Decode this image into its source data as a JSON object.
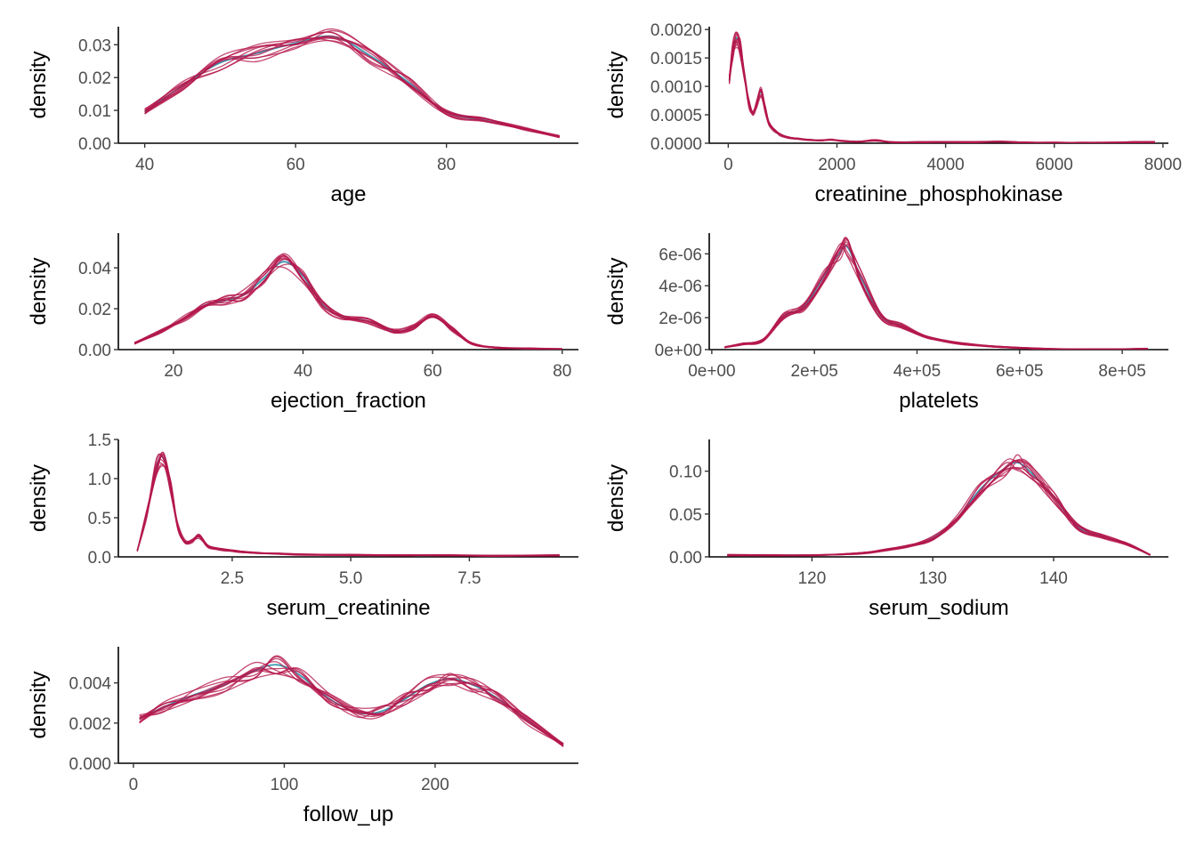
{
  "figure": {
    "colors": {
      "observed": "#3B9AB2",
      "imputed": "#B5174B"
    },
    "legend": "none"
  },
  "chart_data": [
    {
      "type": "line",
      "xlabel": "age",
      "ylabel": "density",
      "xlim": [
        36.5,
        97.5
      ],
      "ylim": [
        0,
        0.0355
      ],
      "xticks": [
        40,
        60,
        80
      ],
      "xtick_labels": [
        "40",
        "60",
        "80"
      ],
      "yticks": [
        0,
        0.01,
        0.02,
        0.03
      ],
      "ytick_labels": [
        "0.00",
        "0.01",
        "0.02",
        "0.03"
      ],
      "grid": false,
      "imputed_series_count": 10,
      "x": [
        40,
        45,
        50,
        55,
        60,
        65,
        70,
        75,
        80,
        85,
        90,
        95
      ],
      "series": [
        {
          "role": "observed",
          "values": [
            0.0095,
            0.0175,
            0.0245,
            0.0275,
            0.0305,
            0.0325,
            0.0265,
            0.0185,
            0.0095,
            0.007,
            0.0045,
            0.002
          ]
        },
        {
          "role": "imputed",
          "values": [
            0.0095,
            0.0175,
            0.0245,
            0.0275,
            0.0305,
            0.0325,
            0.0265,
            0.0185,
            0.0095,
            0.007,
            0.0045,
            0.002
          ]
        }
      ]
    },
    {
      "type": "line",
      "xlabel": "creatinine_phosphokinase",
      "ylabel": "density",
      "xlim": [
        -350,
        8100
      ],
      "ylim": [
        0,
        0.00205
      ],
      "xticks": [
        0,
        2000,
        4000,
        6000,
        8000
      ],
      "xtick_labels": [
        "0",
        "2000",
        "4000",
        "6000",
        "8000"
      ],
      "yticks": [
        0,
        0.0005,
        0.001,
        0.0015,
        0.002
      ],
      "ytick_labels": [
        "0.0000",
        "0.0005",
        "0.0010",
        "0.0015",
        "0.0020"
      ],
      "grid": false,
      "imputed_series_count": 10,
      "x": [
        20,
        80,
        150,
        220,
        300,
        380,
        450,
        520,
        600,
        680,
        750,
        850,
        950,
        1100,
        1300,
        1500,
        1700,
        1900,
        2100,
        2400,
        2700,
        3000,
        3500,
        4000,
        4500,
        5000,
        5500,
        6000,
        6500,
        7000,
        7500,
        7850
      ],
      "series": [
        {
          "role": "observed",
          "values": [
            0.0011,
            0.0016,
            0.00185,
            0.0017,
            0.0012,
            0.0007,
            0.00052,
            0.00068,
            0.0009,
            0.0006,
            0.00035,
            0.00022,
            0.00015,
            0.0001,
            8e-05,
            6e-05,
            5e-05,
            6e-05,
            4e-05,
            3e-05,
            5e-05,
            2e-05,
            2e-05,
            2e-05,
            2e-05,
            3e-05,
            1e-05,
            1e-05,
            1e-05,
            1e-05,
            2e-05,
            2e-05
          ]
        },
        {
          "role": "imputed",
          "values": [
            0.0011,
            0.0016,
            0.00185,
            0.0017,
            0.0012,
            0.0007,
            0.00052,
            0.00068,
            0.0009,
            0.0006,
            0.00035,
            0.00022,
            0.00015,
            0.0001,
            8e-05,
            6e-05,
            5e-05,
            6e-05,
            4e-05,
            3e-05,
            5e-05,
            2e-05,
            2e-05,
            2e-05,
            2e-05,
            3e-05,
            1e-05,
            1e-05,
            1e-05,
            1e-05,
            2e-05,
            2e-05
          ]
        }
      ]
    },
    {
      "type": "line",
      "xlabel": "ejection_fraction",
      "ylabel": "density",
      "xlim": [
        11.5,
        82.5
      ],
      "ylim": [
        0,
        0.057
      ],
      "xticks": [
        20,
        40,
        60,
        80
      ],
      "xtick_labels": [
        "20",
        "40",
        "60",
        "80"
      ],
      "yticks": [
        0,
        0.02,
        0.04
      ],
      "ytick_labels": [
        "0.00",
        "0.02",
        "0.04"
      ],
      "grid": false,
      "imputed_series_count": 10,
      "x": [
        14,
        18,
        22,
        25,
        28,
        31,
        34,
        37,
        40,
        43,
        46,
        50,
        54,
        57,
        60,
        63,
        66,
        70,
        75,
        80
      ],
      "series": [
        {
          "role": "observed",
          "values": [
            0.003,
            0.009,
            0.016,
            0.022,
            0.024,
            0.027,
            0.035,
            0.043,
            0.036,
            0.022,
            0.016,
            0.014,
            0.009,
            0.011,
            0.016,
            0.01,
            0.003,
            0.001,
            0.0005,
            0.0003
          ]
        },
        {
          "role": "imputed",
          "values": [
            0.003,
            0.009,
            0.016,
            0.022,
            0.024,
            0.027,
            0.035,
            0.043,
            0.036,
            0.022,
            0.016,
            0.014,
            0.009,
            0.011,
            0.016,
            0.01,
            0.003,
            0.001,
            0.0005,
            0.0003
          ]
        }
      ]
    },
    {
      "type": "line",
      "xlabel": "platelets",
      "ylabel": "density",
      "xlim": [
        -5000,
        890000
      ],
      "ylim": [
        0,
        7.3e-06
      ],
      "xticks": [
        0,
        200000,
        400000,
        600000,
        800000
      ],
      "xtick_labels": [
        "0e+00",
        "2e+05",
        "4e+05",
        "6e+05",
        "8e+05"
      ],
      "yticks": [
        0,
        2e-06,
        4e-06,
        6e-06
      ],
      "ytick_labels": [
        "0e+00",
        "2e-06",
        "4e-06",
        "6e-06"
      ],
      "grid": false,
      "imputed_series_count": 10,
      "x": [
        25000,
        60000,
        100000,
        140000,
        180000,
        220000,
        250000,
        265000,
        290000,
        330000,
        370000,
        420000,
        480000,
        550000,
        650000,
        750000,
        850000
      ],
      "series": [
        {
          "role": "observed",
          "values": [
            1.5e-07,
            3.5e-07,
            6e-07,
            2.1e-06,
            2.7e-06,
            4.7e-06,
            6.1e-06,
            6.4e-06,
            4.6e-06,
            2.1e-06,
            1.5e-06,
            8e-07,
            4e-07,
            2e-07,
            5e-08,
            3e-08,
            5e-08
          ]
        },
        {
          "role": "imputed",
          "values": [
            1.5e-07,
            3.5e-07,
            6e-07,
            2.1e-06,
            2.7e-06,
            4.7e-06,
            6.1e-06,
            6.4e-06,
            4.6e-06,
            2.1e-06,
            1.5e-06,
            8e-07,
            4e-07,
            2e-07,
            5e-08,
            3e-08,
            5e-08
          ]
        }
      ]
    },
    {
      "type": "line",
      "xlabel": "serum_creatinine",
      "ylabel": "density",
      "xlim": [
        0.1,
        9.8
      ],
      "ylim": [
        0,
        1.5
      ],
      "xticks": [
        2.5,
        5,
        7.5
      ],
      "xtick_labels": [
        "2.5",
        "5.0",
        "7.5"
      ],
      "yticks": [
        0,
        0.5,
        1,
        1.5
      ],
      "ytick_labels": [
        "0.0",
        "0.5",
        "1.0",
        "1.5"
      ],
      "grid": false,
      "imputed_series_count": 10,
      "x": [
        0.5,
        0.7,
        0.9,
        1.05,
        1.2,
        1.35,
        1.5,
        1.65,
        1.8,
        2.0,
        2.3,
        2.6,
        3.0,
        3.5,
        4.0,
        5.0,
        6.0,
        7.0,
        8.0,
        9.4
      ],
      "series": [
        {
          "role": "observed",
          "values": [
            0.08,
            0.55,
            1.15,
            1.27,
            0.9,
            0.4,
            0.2,
            0.2,
            0.26,
            0.13,
            0.09,
            0.07,
            0.05,
            0.04,
            0.03,
            0.025,
            0.02,
            0.02,
            0.015,
            0.02
          ]
        },
        {
          "role": "imputed",
          "values": [
            0.08,
            0.55,
            1.15,
            1.27,
            0.9,
            0.4,
            0.2,
            0.2,
            0.26,
            0.13,
            0.09,
            0.07,
            0.05,
            0.04,
            0.03,
            0.025,
            0.02,
            0.02,
            0.015,
            0.02
          ]
        }
      ]
    },
    {
      "type": "line",
      "xlabel": "serum_sodium",
      "ylabel": "density",
      "xlim": [
        111.5,
        149.5
      ],
      "ylim": [
        0,
        0.137
      ],
      "xticks": [
        120,
        130,
        140
      ],
      "xtick_labels": [
        "120",
        "130",
        "140"
      ],
      "yticks": [
        0,
        0.05,
        0.1
      ],
      "ytick_labels": [
        "0.00",
        "0.05",
        "0.10"
      ],
      "grid": false,
      "imputed_series_count": 10,
      "x": [
        113,
        116,
        120,
        124,
        126,
        128,
        130,
        132,
        134,
        136,
        137,
        138,
        140,
        142,
        144,
        146,
        148
      ],
      "series": [
        {
          "role": "observed",
          "values": [
            0.002,
            0.002,
            0.002,
            0.004,
            0.008,
            0.013,
            0.022,
            0.045,
            0.08,
            0.104,
            0.11,
            0.1,
            0.07,
            0.035,
            0.024,
            0.015,
            0.002
          ]
        },
        {
          "role": "imputed",
          "values": [
            0.002,
            0.002,
            0.002,
            0.004,
            0.008,
            0.013,
            0.022,
            0.045,
            0.08,
            0.104,
            0.11,
            0.1,
            0.07,
            0.035,
            0.024,
            0.015,
            0.002
          ]
        }
      ]
    },
    {
      "type": "line",
      "xlabel": "follow_up",
      "ylabel": "density",
      "xlim": [
        -10,
        295
      ],
      "ylim": [
        0,
        0.0058
      ],
      "xticks": [
        0,
        100,
        200
      ],
      "xtick_labels": [
        "0",
        "100",
        "200"
      ],
      "yticks": [
        0,
        0.002,
        0.004
      ],
      "ytick_labels": [
        "0.000",
        "0.002",
        "0.004"
      ],
      "grid": false,
      "imputed_series_count": 10,
      "x": [
        4,
        20,
        40,
        60,
        80,
        95,
        110,
        130,
        150,
        165,
        180,
        195,
        210,
        225,
        240,
        260,
        285
      ],
      "series": [
        {
          "role": "observed",
          "values": [
            0.0022,
            0.0028,
            0.0034,
            0.0039,
            0.0046,
            0.0049,
            0.0044,
            0.0032,
            0.0025,
            0.0026,
            0.0032,
            0.0039,
            0.0042,
            0.0039,
            0.0033,
            0.0022,
            0.0009
          ]
        },
        {
          "role": "imputed",
          "values": [
            0.0022,
            0.0028,
            0.0034,
            0.0039,
            0.0046,
            0.0049,
            0.0044,
            0.0032,
            0.0025,
            0.0026,
            0.0032,
            0.0039,
            0.0042,
            0.0039,
            0.0033,
            0.0022,
            0.0009
          ]
        }
      ]
    }
  ]
}
